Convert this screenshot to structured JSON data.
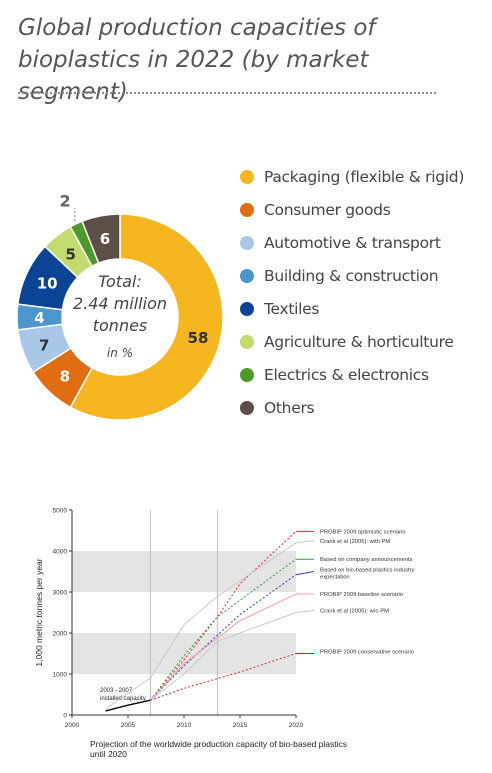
{
  "title": "Global production capacities of bioplastics in 2022 (by market segment)",
  "chart_data": [
    {
      "type": "pie",
      "center_text": [
        "Total:",
        "2.44 million",
        "tonnes",
        "in %"
      ],
      "unit": "%",
      "slices": [
        {
          "label": "Packaging (flexible & rigid)",
          "value": 58,
          "color": "#f6b620"
        },
        {
          "label": "Consumer goods",
          "value": 8,
          "color": "#e06d12"
        },
        {
          "label": "Automotive & transport",
          "value": 7,
          "color": "#a9c8e8"
        },
        {
          "label": "Building & construction",
          "value": 4,
          "color": "#4a96cd"
        },
        {
          "label": "Textiles",
          "value": 10,
          "color": "#0b4495"
        },
        {
          "label": "Agriculture & horticulture",
          "value": 5,
          "color": "#c2db6e"
        },
        {
          "label": "Electrics & electronics",
          "value": 2,
          "color": "#4d9a2a"
        },
        {
          "label": "Others",
          "value": 6,
          "color": "#5b4f47"
        }
      ],
      "legend_position": "right"
    },
    {
      "type": "line",
      "xlabel": "Projection of the worldwide production capacity of bio-based plastics until 2020",
      "ylabel": "1,000 metric tonnes per year",
      "xlim": [
        2000,
        2020
      ],
      "ylim": [
        0,
        5000
      ],
      "xticks": [
        "2000",
        "2005",
        "2010",
        "2015",
        "2020"
      ],
      "yticks": [
        "0",
        "1000",
        "2000",
        "3000",
        "4000",
        "5000"
      ],
      "shaded_bands": [
        [
          1000,
          2000
        ],
        [
          3000,
          4000
        ]
      ],
      "vertical_lines": [
        2007,
        2013
      ],
      "annotation": {
        "text": [
          "2003 - 2007",
          "installed capacity"
        ],
        "x": 2005,
        "y": 560
      },
      "series": [
        {
          "name": "2003 - 2007 installed capacity",
          "color": "#000000",
          "dash": "",
          "points": [
            [
              2003,
              100
            ],
            [
              2005,
              240
            ],
            [
              2007,
              360
            ]
          ]
        },
        {
          "name": "PROBIP 2009 optimistic scenario",
          "color": "#e03030",
          "dash": "2,2",
          "points": [
            [
              2007,
              360
            ],
            [
              2010,
              1350
            ],
            [
              2013,
              2400
            ],
            [
              2015,
              3200
            ],
            [
              2020,
              4480
            ]
          ]
        },
        {
          "name": "Crank et al (2005): with PM",
          "color": "#c8c8c8",
          "dash": "",
          "points": [
            [
              2003,
              150
            ],
            [
              2007,
              900
            ],
            [
              2010,
              2200
            ],
            [
              2013,
              2900
            ],
            [
              2020,
              4200
            ]
          ]
        },
        {
          "name": "Based on company announcements",
          "color": "#2e9a3a",
          "dash": "2,2",
          "points": [
            [
              2007,
              360
            ],
            [
              2010,
              1450
            ],
            [
              2013,
              2400
            ],
            [
              2015,
              2800
            ],
            [
              2020,
              3800
            ]
          ]
        },
        {
          "name": "Based on bio-based plastics industry expectation",
          "color": "#2a3fc4",
          "dash": "2,2",
          "points": [
            [
              2007,
              360
            ],
            [
              2010,
              1200
            ],
            [
              2015,
              2450
            ],
            [
              2020,
              3420
            ]
          ]
        },
        {
          "name": "PROBIP 2009 baseline scenario",
          "color": "#f0a0a0",
          "dash": "",
          "points": [
            [
              2007,
              360
            ],
            [
              2010,
              1250
            ],
            [
              2015,
              2300
            ],
            [
              2020,
              2950
            ]
          ]
        },
        {
          "name": "Crank et al (2005): w/o PM",
          "color": "#c8c8c8",
          "dash": "",
          "points": [
            [
              2007,
              360
            ],
            [
              2010,
              1000
            ],
            [
              2013,
              1800
            ],
            [
              2020,
              2500
            ]
          ]
        },
        {
          "name": "PROBIP 2009 conservative scenario",
          "color": "#d02020",
          "dash": "2,2",
          "points": [
            [
              2007,
              360
            ],
            [
              2010,
              650
            ],
            [
              2015,
              1050
            ],
            [
              2020,
              1500
            ]
          ]
        }
      ],
      "series_label_y": [
        4480,
        4250,
        3800,
        3500,
        2950,
        2550,
        1500
      ]
    }
  ]
}
